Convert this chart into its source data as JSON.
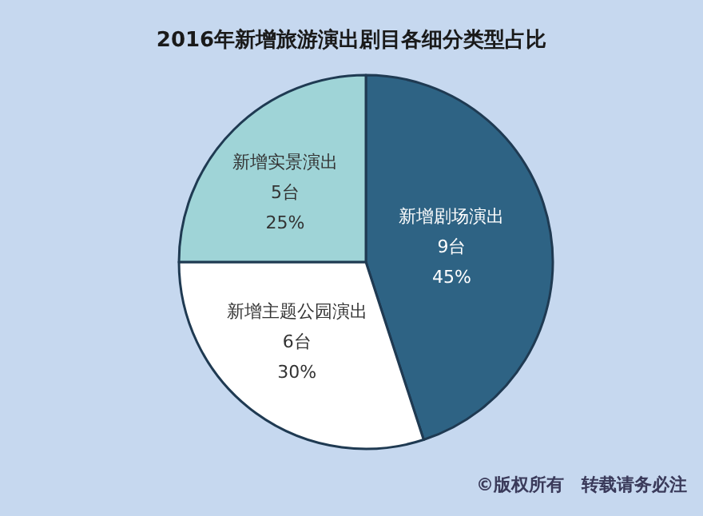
{
  "chart_data": {
    "type": "pie",
    "title": "2016年新增旅游演出剧目各细分类型占比",
    "categories": [
      "新增剧场演出",
      "新增主题公园演出",
      "新增实景演出"
    ],
    "values": [
      9,
      6,
      5
    ],
    "value_labels": [
      "9台\n45%",
      "6台\n30%",
      "5台\n25%"
    ],
    "colors": [
      "#2e6384",
      "#ffffff",
      "#9fd4d7"
    ],
    "annotations": [
      "©版权所有　转载请务必注"
    ],
    "legend": false
  }
}
